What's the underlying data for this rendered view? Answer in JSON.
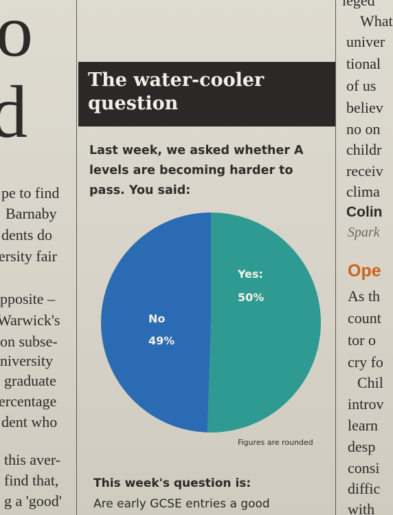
{
  "left_column": {
    "big_letters": [
      "o",
      "d"
    ],
    "paragraph_1": [
      "pe to find",
      "Barnaby",
      "dents do",
      "ersity fair"
    ],
    "paragraph_2": [
      "pposite –",
      "Warwick's",
      "on subse-",
      "niversity",
      "graduate",
      "ercentage",
      "dent who"
    ],
    "paragraph_3": [
      "this aver-",
      "find that,",
      "g a 'good'"
    ]
  },
  "box": {
    "headline": [
      "The water-cooler",
      "question"
    ],
    "intro": "Last week, we asked whether A levels are becoming harder to pass. You said:",
    "footnote": "Figures are rounded",
    "next_heading": "This week's question is:",
    "next_body": "Are early GCSE entries a good"
  },
  "chart_data": {
    "type": "pie",
    "categories": [
      "Yes",
      "No"
    ],
    "values": [
      50,
      49
    ],
    "labels": [
      {
        "name": "Yes:",
        "value": "50%"
      },
      {
        "name": "No",
        "value": "49%"
      }
    ],
    "colors": {
      "Yes": "#2e9a92",
      "No": "#2a6bb3"
    }
  },
  "right_column": {
    "lines_1": [
      "leged",
      "What",
      "univer",
      "tional",
      "of us",
      "believ",
      "no on",
      "childr",
      "receiv",
      "clima"
    ],
    "byline_name": "Colin",
    "byline_role": "Spark",
    "section_heading": "Ope",
    "lines_2": [
      "As th",
      "count",
      "tor o",
      "cry fo",
      "Chil",
      "introv",
      "learn",
      "desp",
      "consi",
      "diffic",
      "with"
    ]
  }
}
